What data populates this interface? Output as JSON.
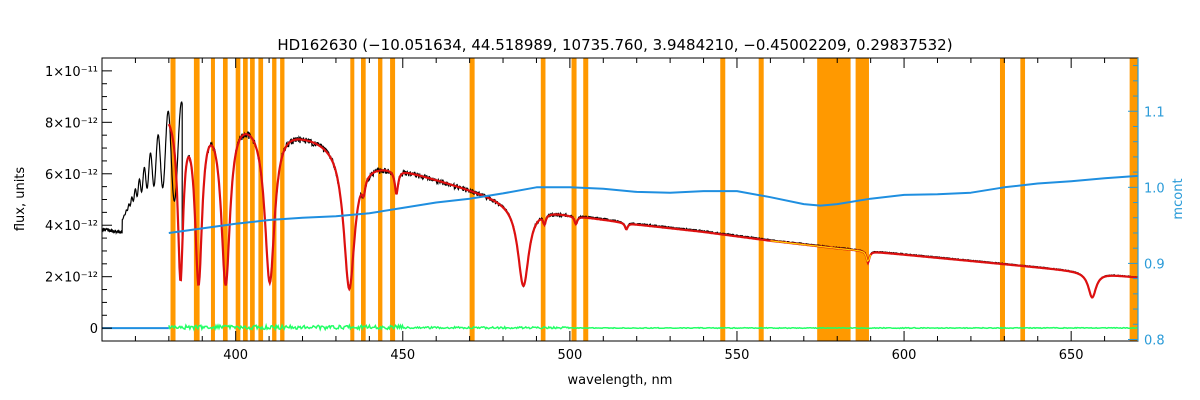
{
  "chart_data": {
    "type": "line",
    "title": "HD162630    (−10.051634, 44.518989, 10735.760, 3.9484210, −0.45002209, 0.29837532)",
    "xlabel": "wavelength, nm",
    "ylabel": "flux, units",
    "y2label": "mcont",
    "xlim": [
      360,
      670
    ],
    "ylim": [
      -5e-13,
      1.05e-11
    ],
    "y2lim": [
      0.798,
      1.17
    ],
    "x_ticks": [
      400,
      450,
      500,
      550,
      600,
      650
    ],
    "x_tick_labels": [
      "400",
      "450",
      "500",
      "550",
      "600",
      "650"
    ],
    "y_ticks": [
      0,
      2e-12,
      4e-12,
      6e-12,
      8e-12,
      1e-11
    ],
    "y_tick_labels": [
      "0",
      "2×10⁻¹²",
      "4×10⁻¹²",
      "6×10⁻¹²",
      "8×10⁻¹²",
      "1×10⁻¹¹"
    ],
    "y2_ticks": [
      0.8,
      0.9,
      1.0,
      1.1
    ],
    "y2_tick_labels": [
      "0.8",
      "0.9",
      "1.0",
      "1.1"
    ],
    "grid": false,
    "colors": {
      "observed": "#000000",
      "model": "#dd1010",
      "model_fill": "#ffd400",
      "continuum": "#1f8fe0",
      "residual": "#22ff66",
      "masked": "#ff9900",
      "axis_right": "#2a9bd8"
    },
    "continuum": {
      "x": [
        380,
        390,
        400,
        410,
        420,
        430,
        440,
        450,
        460,
        470,
        480,
        490,
        500,
        510,
        520,
        530,
        540,
        550,
        560,
        570,
        575,
        580,
        590,
        600,
        610,
        620,
        630,
        640,
        650,
        660,
        670
      ],
      "y": [
        0.94,
        0.946,
        0.952,
        0.957,
        0.96,
        0.962,
        0.966,
        0.973,
        0.98,
        0.985,
        0.992,
        1.0,
        1.0,
        0.998,
        0.994,
        0.993,
        0.995,
        0.995,
        0.987,
        0.978,
        0.976,
        0.978,
        0.985,
        0.99,
        0.991,
        0.993,
        1.0,
        1.005,
        1.008,
        1.012,
        1.015
      ]
    },
    "envelope": {
      "x": [
        360,
        370,
        380,
        384,
        390,
        395,
        400,
        405,
        410,
        420,
        430,
        440,
        450,
        460,
        470,
        480,
        490,
        500,
        520,
        540,
        560,
        580,
        600,
        620,
        640,
        660,
        670
      ],
      "y": [
        3.9e-12,
        3.7e-12,
        8.8e-12,
        8.9e-12,
        9e-12,
        8.8e-12,
        8.7e-12,
        8.5e-12,
        8.3e-12,
        7.8e-12,
        7.4e-12,
        6.6e-12,
        6.3e-12,
        5.9e-12,
        5.5e-12,
        5.1e-12,
        4.8e-12,
        4.5e-12,
        4.1e-12,
        3.8e-12,
        3.45e-12,
        3.15e-12,
        2.9e-12,
        2.65e-12,
        2.4e-12,
        2.15e-12,
        2e-12
      ]
    },
    "absorption_lines": [
      {
        "x": 383.5,
        "depth": 0.78,
        "width": 1.0
      },
      {
        "x": 388.9,
        "depth": 0.8,
        "width": 1.3
      },
      {
        "x": 397.0,
        "depth": 0.8,
        "width": 1.6
      },
      {
        "x": 410.2,
        "depth": 0.78,
        "width": 1.8
      },
      {
        "x": 434.0,
        "depth": 0.78,
        "width": 2.0
      },
      {
        "x": 438.3,
        "depth": 0.1,
        "width": 0.6
      },
      {
        "x": 448.1,
        "depth": 0.15,
        "width": 0.6
      },
      {
        "x": 486.1,
        "depth": 0.66,
        "width": 2.0
      },
      {
        "x": 492.4,
        "depth": 0.08,
        "width": 0.5
      },
      {
        "x": 501.8,
        "depth": 0.07,
        "width": 0.5
      },
      {
        "x": 516.9,
        "depth": 0.06,
        "width": 0.5
      },
      {
        "x": 589.2,
        "depth": 0.15,
        "width": 0.5
      },
      {
        "x": 656.3,
        "depth": 0.45,
        "width": 1.4
      }
    ],
    "masked_regions": [
      [
        380.5,
        382.0
      ],
      [
        387.5,
        389.2
      ],
      [
        392.6,
        393.8
      ],
      [
        396.2,
        397.6
      ],
      [
        400.0,
        401.4
      ],
      [
        402.2,
        403.6
      ],
      [
        404.3,
        405.7
      ],
      [
        406.8,
        408.2
      ],
      [
        410.9,
        412.2
      ],
      [
        413.3,
        414.6
      ],
      [
        434.3,
        435.5
      ],
      [
        437.5,
        438.9
      ],
      [
        442.6,
        443.9
      ],
      [
        446.2,
        447.7
      ],
      [
        470.0,
        471.5
      ],
      [
        491.3,
        492.7
      ],
      [
        500.5,
        502.0
      ],
      [
        504.0,
        505.5
      ],
      [
        545.0,
        546.5
      ],
      [
        556.5,
        558.0
      ],
      [
        574.0,
        584.0
      ],
      [
        585.5,
        589.5
      ],
      [
        628.7,
        630.2
      ],
      [
        634.8,
        636.2
      ],
      [
        667.5,
        670.0
      ]
    ],
    "observed_short_x": [
      360,
      384
    ],
    "residual_level": 0
  }
}
